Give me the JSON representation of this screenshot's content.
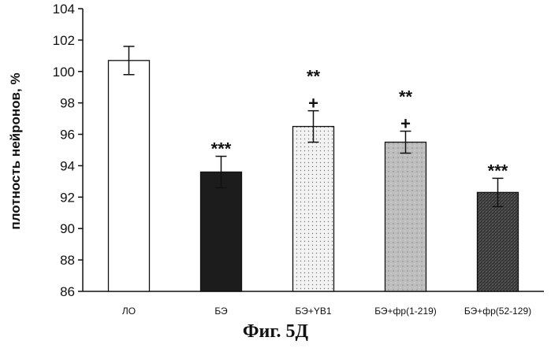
{
  "chart_data": {
    "type": "bar",
    "categories": [
      "ЛО",
      "БЭ",
      "БЭ+YB1",
      "БЭ+фр(1-219)",
      "БЭ+фр(52-129)"
    ],
    "values": [
      100.7,
      93.6,
      96.5,
      95.5,
      92.3
    ],
    "errors": [
      0.9,
      1.0,
      1.0,
      0.7,
      0.9
    ],
    "annotations": [
      [],
      [
        "***"
      ],
      [
        "**",
        "+"
      ],
      [
        "**",
        "+"
      ],
      [
        "***"
      ]
    ],
    "ylabel": "плотность нейронов, %",
    "ylim": [
      86,
      104
    ],
    "yticks": [
      86,
      88,
      90,
      92,
      94,
      96,
      98,
      100,
      102,
      104
    ],
    "grid": false,
    "fills": [
      "white",
      "#1c1c1c",
      "dots-light",
      "mottled-gray",
      "dark-crosshatch"
    ]
  },
  "caption": "Фиг. 5Д"
}
